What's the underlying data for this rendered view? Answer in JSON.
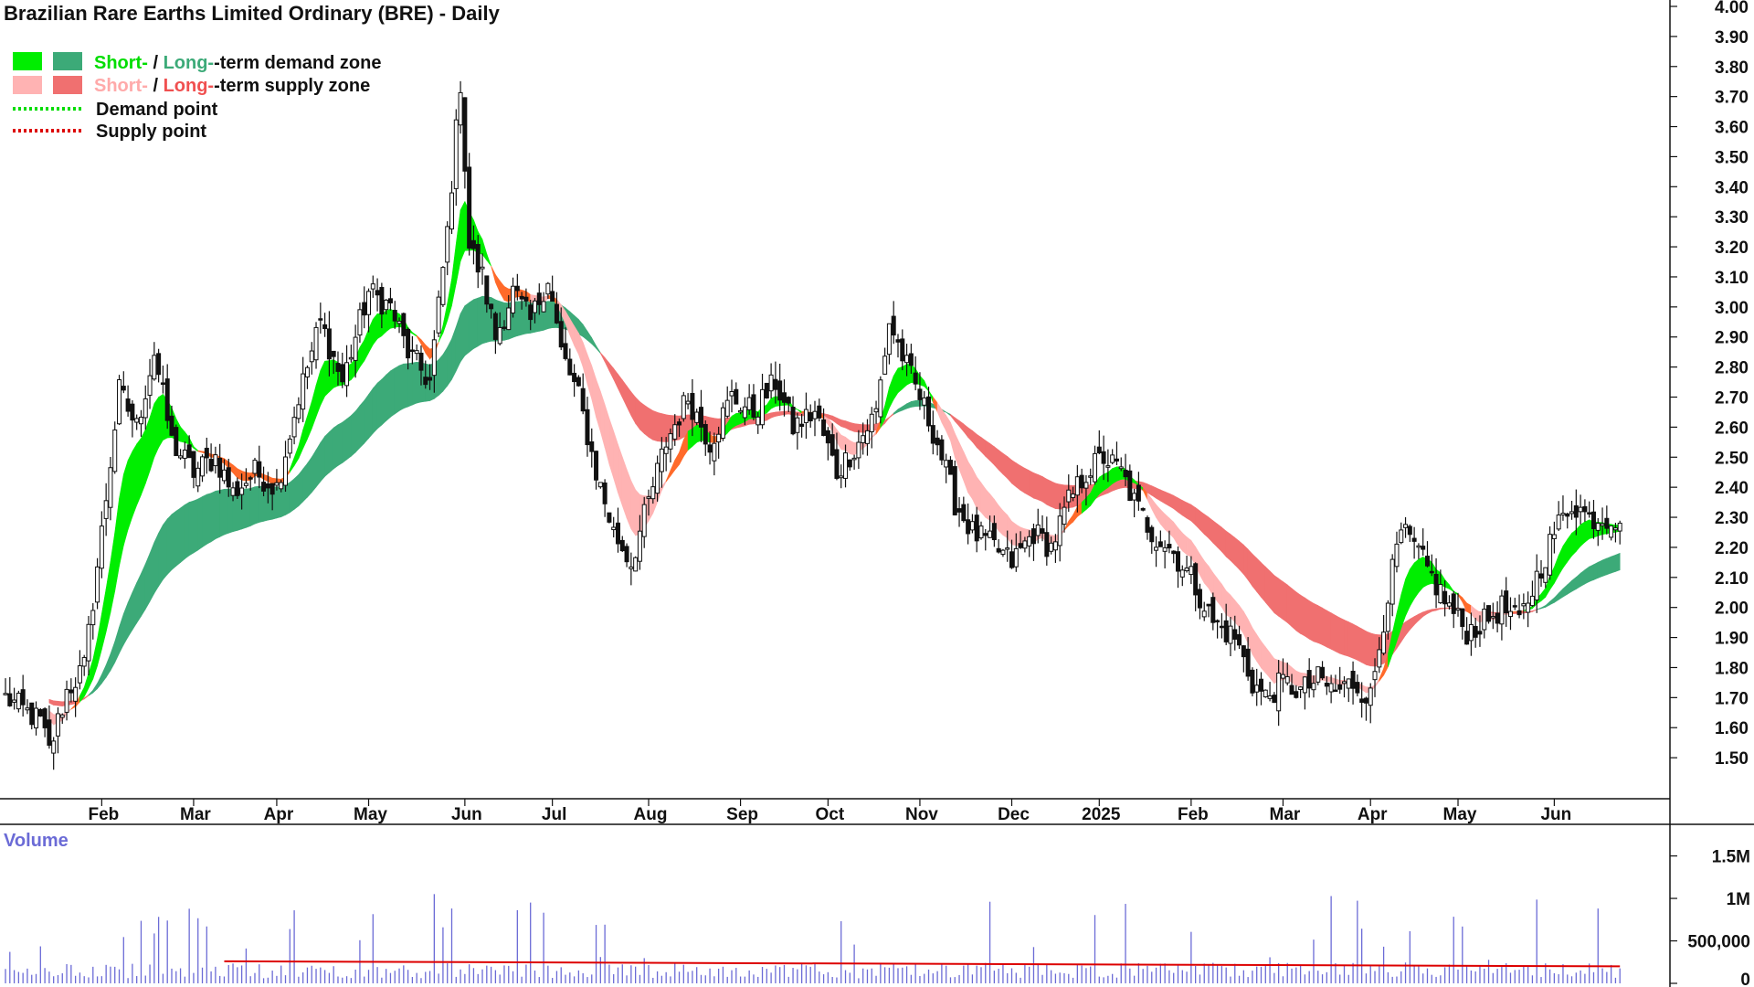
{
  "chart_data": {
    "type": "candlestick",
    "title": "Brazilian Rare Earths Limited Ordinary (BRE) - Daily",
    "legend": [
      {
        "label_short": "Short-",
        "separator": " / ",
        "label_long": "Long-",
        "suffix": "-term demand zone",
        "color_short": "#00ee00",
        "color_long": "#3caa78"
      },
      {
        "label_short": "Short-",
        "separator": " / ",
        "label_long": "Long-",
        "suffix": "-term supply zone",
        "color_short": "#ffb3b3",
        "color_long": "#f07070"
      },
      {
        "label": "Demand point",
        "color": "#00dd00",
        "style": "dotted"
      },
      {
        "label": "Supply point",
        "color": "#dd0000",
        "style": "dotted"
      }
    ],
    "legend_position": "top-left",
    "price_axis": {
      "min": 1.4,
      "max": 4.0,
      "ticks": [
        "4.00",
        "3.90",
        "3.80",
        "3.70",
        "3.60",
        "3.50",
        "3.40",
        "3.30",
        "3.20",
        "3.10",
        "3.00",
        "2.90",
        "2.80",
        "2.70",
        "2.60",
        "2.50",
        "2.40",
        "2.30",
        "2.20",
        "2.10",
        "2.00",
        "1.90",
        "1.80",
        "1.70",
        "1.60",
        "1.50"
      ],
      "tick_values": [
        4.0,
        3.9,
        3.8,
        3.7,
        3.6,
        3.5,
        3.4,
        3.3,
        3.2,
        3.1,
        3.0,
        2.9,
        2.8,
        2.7,
        2.6,
        2.5,
        2.4,
        2.3,
        2.2,
        2.1,
        2.0,
        1.9,
        1.8,
        1.7,
        1.6,
        1.5
      ]
    },
    "x_axis": {
      "labels": [
        "Feb",
        "Mar",
        "Apr",
        "May",
        "Jun",
        "Jul",
        "Aug",
        "Sep",
        "Oct",
        "Nov",
        "Dec",
        "2025",
        "Feb",
        "Mar",
        "Apr",
        "May",
        "Jun"
      ],
      "label_days": [
        22,
        43,
        62,
        83,
        105,
        125,
        147,
        168,
        188,
        209,
        230,
        250,
        271,
        292,
        312,
        332,
        354
      ],
      "day_count": 370
    },
    "volume_axis": {
      "label": "Volume",
      "ticks": [
        "1.5M",
        "1M",
        "500,000",
        "0"
      ],
      "tick_values": [
        1500000,
        1000000,
        500000,
        0
      ],
      "max": 1700000
    },
    "price_path": [
      [
        0,
        1.7
      ],
      [
        8,
        1.62
      ],
      [
        10,
        1.52
      ],
      [
        14,
        1.72
      ],
      [
        18,
        1.8
      ],
      [
        22,
        2.25
      ],
      [
        26,
        2.72
      ],
      [
        30,
        2.6
      ],
      [
        34,
        2.85
      ],
      [
        38,
        2.55
      ],
      [
        43,
        2.45
      ],
      [
        48,
        2.5
      ],
      [
        52,
        2.38
      ],
      [
        57,
        2.45
      ],
      [
        62,
        2.4
      ],
      [
        67,
        2.7
      ],
      [
        72,
        2.95
      ],
      [
        77,
        2.75
      ],
      [
        83,
        3.05
      ],
      [
        88,
        3.0
      ],
      [
        92,
        2.85
      ],
      [
        97,
        2.75
      ],
      [
        101,
        3.25
      ],
      [
        104,
        3.75
      ],
      [
        106,
        3.2
      ],
      [
        109,
        3.1
      ],
      [
        112,
        2.9
      ],
      [
        116,
        3.05
      ],
      [
        120,
        2.95
      ],
      [
        124,
        3.1
      ],
      [
        127,
        2.85
      ],
      [
        131,
        2.7
      ],
      [
        135,
        2.45
      ],
      [
        139,
        2.25
      ],
      [
        143,
        2.15
      ],
      [
        147,
        2.35
      ],
      [
        151,
        2.55
      ],
      [
        156,
        2.7
      ],
      [
        161,
        2.55
      ],
      [
        166,
        2.7
      ],
      [
        171,
        2.65
      ],
      [
        176,
        2.75
      ],
      [
        180,
        2.6
      ],
      [
        185,
        2.65
      ],
      [
        190,
        2.45
      ],
      [
        195,
        2.55
      ],
      [
        199,
        2.65
      ],
      [
        202,
        2.95
      ],
      [
        206,
        2.8
      ],
      [
        209,
        2.7
      ],
      [
        213,
        2.55
      ],
      [
        217,
        2.35
      ],
      [
        221,
        2.25
      ],
      [
        226,
        2.2
      ],
      [
        230,
        2.15
      ],
      [
        235,
        2.25
      ],
      [
        239,
        2.2
      ],
      [
        243,
        2.35
      ],
      [
        247,
        2.45
      ],
      [
        251,
        2.5
      ],
      [
        255,
        2.45
      ],
      [
        258,
        2.35
      ],
      [
        262,
        2.25
      ],
      [
        266,
        2.2
      ],
      [
        271,
        2.1
      ],
      [
        276,
        1.95
      ],
      [
        281,
        1.9
      ],
      [
        285,
        1.75
      ],
      [
        288,
        1.7
      ],
      [
        292,
        1.75
      ],
      [
        296,
        1.72
      ],
      [
        300,
        1.76
      ],
      [
        304,
        1.72
      ],
      [
        308,
        1.75
      ],
      [
        312,
        1.7
      ],
      [
        316,
        2.05
      ],
      [
        319,
        2.25
      ],
      [
        322,
        2.2
      ],
      [
        326,
        2.1
      ],
      [
        330,
        2.0
      ],
      [
        334,
        1.92
      ],
      [
        338,
        1.95
      ],
      [
        342,
        2.0
      ],
      [
        346,
        1.95
      ],
      [
        350,
        2.1
      ],
      [
        354,
        2.25
      ],
      [
        358,
        2.35
      ],
      [
        362,
        2.3
      ],
      [
        366,
        2.3
      ]
    ],
    "volume_average": 200000
  }
}
